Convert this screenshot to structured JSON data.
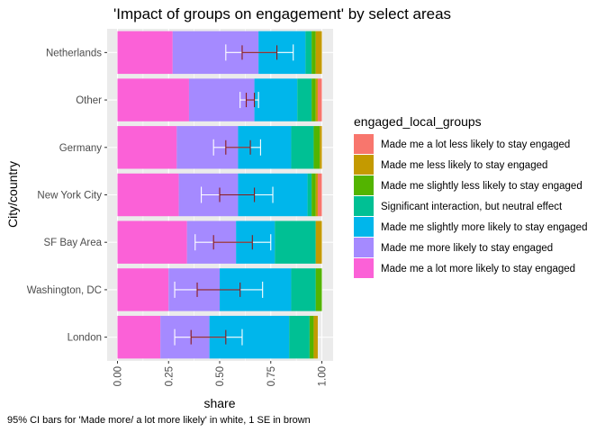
{
  "chart_data": {
    "type": "bar",
    "orientation": "horizontal",
    "stacked": true,
    "title": "'Impact of groups on engagement' by select areas",
    "xlabel": "share",
    "ylabel": "City/country",
    "caption": "95% CI bars for 'Made more/ a lot more likely' in white, 1 SE in brown",
    "xlim": [
      0,
      1
    ],
    "x_ticks": [
      "0.00",
      "0.25",
      "0.50",
      "0.75",
      "1.00"
    ],
    "x_tick_values": [
      0,
      0.25,
      0.5,
      0.75,
      1.0
    ],
    "grid": true,
    "legend_title": "engaged_local_groups",
    "legend_position": "right",
    "categories": [
      "Netherlands",
      "Other",
      "Germany",
      "New York City",
      "SF Bay Area",
      "Washington, DC",
      "London"
    ],
    "series": [
      {
        "name": "Made me a lot less likely to stay engaged",
        "color": "#F8766D",
        "values": [
          0.0,
          0.02,
          0.0,
          0.02,
          0.0,
          0.0,
          0.0
        ]
      },
      {
        "name": "Made me less likely to stay engaged",
        "color": "#C49A00",
        "values": [
          0.03,
          0.01,
          0.01,
          0.01,
          0.03,
          0.0,
          0.02
        ]
      },
      {
        "name": "Made me slightly less likely to stay engaged",
        "color": "#53B400",
        "values": [
          0.02,
          0.02,
          0.03,
          0.02,
          0.0,
          0.03,
          0.02
        ]
      },
      {
        "name": "Significant interaction, but neutral effect",
        "color": "#00C094",
        "values": [
          0.03,
          0.07,
          0.11,
          0.02,
          0.2,
          0.12,
          0.1
        ]
      },
      {
        "name": "Made me slightly more likely to stay engaged",
        "color": "#00B6EB",
        "values": [
          0.23,
          0.21,
          0.26,
          0.34,
          0.19,
          0.35,
          0.39
        ]
      },
      {
        "name": "Made me more likely to stay engaged",
        "color": "#A58AFF",
        "values": [
          0.42,
          0.32,
          0.3,
          0.29,
          0.24,
          0.25,
          0.24
        ]
      },
      {
        "name": "Made me a lot more likely to stay engaged",
        "color": "#FB61D7",
        "values": [
          0.27,
          0.35,
          0.29,
          0.3,
          0.34,
          0.25,
          0.21
        ]
      }
    ],
    "ci95": [
      [
        0.53,
        0.86
      ],
      [
        0.6,
        0.69
      ],
      [
        0.47,
        0.7
      ],
      [
        0.41,
        0.76
      ],
      [
        0.38,
        0.75
      ],
      [
        0.28,
        0.71
      ],
      [
        0.28,
        0.61
      ]
    ],
    "ci95_color": "#FFFFFF",
    "se1": [
      [
        0.61,
        0.78
      ],
      [
        0.63,
        0.67
      ],
      [
        0.53,
        0.65
      ],
      [
        0.5,
        0.67
      ],
      [
        0.47,
        0.66
      ],
      [
        0.39,
        0.6
      ],
      [
        0.36,
        0.53
      ]
    ],
    "se1_color": "#8B1A1A"
  }
}
